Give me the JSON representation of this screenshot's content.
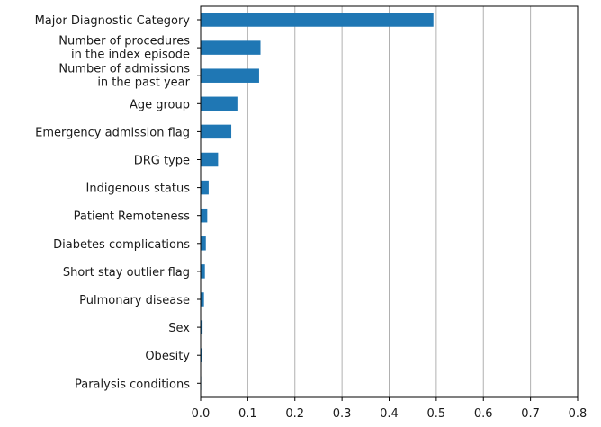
{
  "chart_data": {
    "type": "bar",
    "orientation": "horizontal",
    "title": "",
    "xlabel": "",
    "ylabel": "",
    "xlim": [
      0,
      0.8
    ],
    "xticks": [
      "0.0",
      "0.1",
      "0.2",
      "0.3",
      "0.4",
      "0.5",
      "0.6",
      "0.7",
      "0.8"
    ],
    "grid": "vertical",
    "bar_color": "#1f77b4",
    "categories": [
      [
        "Major Diagnostic Category"
      ],
      [
        "Number of procedures",
        "in the index episode"
      ],
      [
        "Number of admissions",
        "in the past year"
      ],
      [
        "Age group"
      ],
      [
        "Emergency admission flag"
      ],
      [
        "DRG type"
      ],
      [
        "Indigenous status"
      ],
      [
        "Patient Remoteness"
      ],
      [
        "Diabetes complications"
      ],
      [
        "Short stay outlier flag"
      ],
      [
        "Pulmonary disease"
      ],
      [
        "Sex"
      ],
      [
        "Obesity"
      ],
      [
        "Paralysis conditions"
      ]
    ],
    "values": [
      0.494,
      0.127,
      0.124,
      0.078,
      0.065,
      0.037,
      0.017,
      0.014,
      0.011,
      0.009,
      0.007,
      0.004,
      0.003,
      0.001
    ]
  }
}
